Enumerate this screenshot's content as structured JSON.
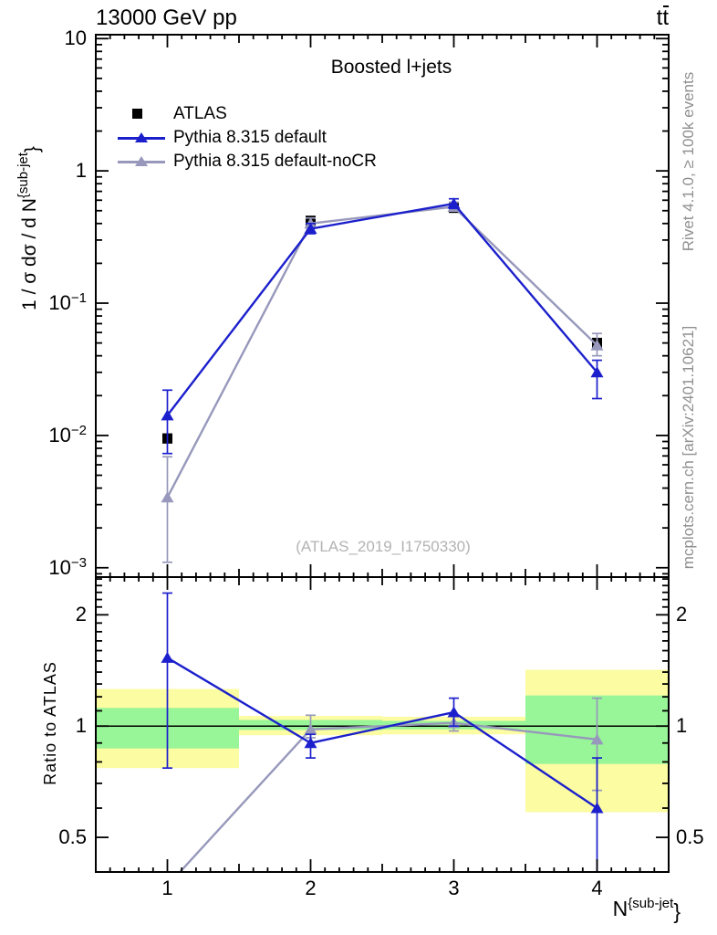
{
  "header": {
    "left": "13000 GeV pp",
    "right_label": "tt̄",
    "right_t1": "t",
    "right_t2": "t"
  },
  "title": "Boosted l+jets",
  "watermark": "(ATLAS_2019_I1750330)",
  "side_notes": {
    "top": "Rivet 4.1.0, ≥ 100k events",
    "bottom": "mcplots.cern.ch [arXiv:2401.10621]"
  },
  "legend": [
    {
      "label": "ATLAS",
      "marker": "square",
      "color": "#000000"
    },
    {
      "label": "Pythia 8.315 default",
      "marker": "triangle-line",
      "color": "#1c20cc"
    },
    {
      "label": "Pythia 8.315 default-noCR",
      "marker": "triangle-line",
      "color": "#9798bb"
    }
  ],
  "axes": {
    "top_panel": {
      "ylabel": {
        "prefix": "1 / σ dσ / d N",
        "sup": "{sub-jet",
        "close": "}"
      },
      "yticks": [
        {
          "v": 10,
          "main": "10",
          "sup": ""
        },
        {
          "v": 1,
          "main": "1",
          "sup": ""
        },
        {
          "v": 0.1,
          "main": "10",
          "sup": "−1"
        },
        {
          "v": 0.01,
          "main": "10",
          "sup": "−2"
        },
        {
          "v": 0.001,
          "main": "10",
          "sup": "−3"
        }
      ]
    },
    "ratio_panel": {
      "ylabel": "Ratio to ATLAS",
      "yticks": [
        {
          "v": 2,
          "main": "2"
        },
        {
          "v": 1,
          "main": "1"
        },
        {
          "v": 0.5,
          "main": "0.5"
        }
      ],
      "xticks": [
        {
          "v": 1,
          "label": "1"
        },
        {
          "v": 2,
          "label": "2"
        },
        {
          "v": 3,
          "label": "3"
        },
        {
          "v": 4,
          "label": "4"
        }
      ],
      "xlabel": {
        "prefix": "N",
        "sup": "{sub-jet",
        "close": "}"
      }
    }
  },
  "chart_data": [
    {
      "type": "line",
      "title": "Boosted l+jets",
      "xlabel": "N^{sub-jet}",
      "ylabel": "1 / σ dσ / d N^{sub-jet}",
      "yscale": "log",
      "x": [
        1,
        2,
        3,
        4
      ],
      "xlim": [
        0.5,
        4.5
      ],
      "ylim": [
        0.00085,
        10.7
      ],
      "series": [
        {
          "id": "atlas",
          "name": "ATLAS",
          "marker": "square",
          "line": false,
          "color": "#000000",
          "values": [
            0.0095,
            0.42,
            0.525,
            0.05
          ],
          "err_lo": [
            0.0088,
            0.408,
            0.51,
            0.046
          ],
          "err_hi": [
            0.0102,
            0.432,
            0.545,
            0.054
          ]
        },
        {
          "id": "pythia-default-nocr",
          "name": "Pythia 8.315 default-noCR",
          "marker": "triangle",
          "line": true,
          "color": "#9798bb",
          "values": [
            0.0034,
            0.4,
            0.535,
            0.048
          ],
          "err_lo": [
            0.0011,
            0.37,
            0.5,
            0.04
          ],
          "err_hi": [
            0.0069,
            0.44,
            0.58,
            0.059
          ]
        },
        {
          "id": "pythia-default",
          "name": "Pythia 8.315 default",
          "marker": "triangle",
          "line": true,
          "color": "#1c20cc",
          "values": [
            0.0142,
            0.365,
            0.565,
            0.03
          ],
          "err_lo": [
            0.0073,
            0.335,
            0.52,
            0.019
          ],
          "err_hi": [
            0.022,
            0.4,
            0.615,
            0.037
          ]
        }
      ]
    },
    {
      "type": "line",
      "ylabel": "Ratio to ATLAS",
      "yscale": "log",
      "x": [
        1,
        2,
        3,
        4
      ],
      "xlim": [
        0.5,
        4.5
      ],
      "ylim": [
        0.403,
        2.53
      ],
      "unity_line": 1,
      "series": [
        {
          "id": "ratio-pythia-default-nocr",
          "name": "Pythia 8.315 default-noCR",
          "marker": "triangle",
          "line": true,
          "color": "#9798bb",
          "values": [
            0.37,
            0.98,
            1.02,
            0.92
          ],
          "err_lo": [
            null,
            0.93,
            0.97,
            0.67
          ],
          "err_hi": [
            null,
            1.07,
            1.07,
            1.19
          ]
        },
        {
          "id": "ratio-pythia-default",
          "name": "Pythia 8.315 default",
          "marker": "triangle",
          "line": true,
          "color": "#1c20cc",
          "values": [
            1.53,
            0.9,
            1.09,
            0.6
          ],
          "err_lo": [
            0.77,
            0.82,
            1.0,
            0.3
          ],
          "err_hi": [
            2.29,
            0.95,
            1.19,
            0.82
          ]
        }
      ],
      "bands": {
        "edges": [
          0.5,
          1.5,
          2.5,
          3.5,
          4.5
        ],
        "yellow_color": "#fcfca2",
        "green_color": "#98f598",
        "yellow": [
          [
            0.77,
            1.26
          ],
          [
            0.945,
            1.065
          ],
          [
            0.95,
            1.06
          ],
          [
            0.585,
            1.42
          ]
        ],
        "green": [
          [
            0.87,
            1.12
          ],
          [
            0.976,
            1.039
          ],
          [
            0.98,
            1.033
          ],
          [
            0.79,
            1.21
          ]
        ]
      }
    }
  ]
}
